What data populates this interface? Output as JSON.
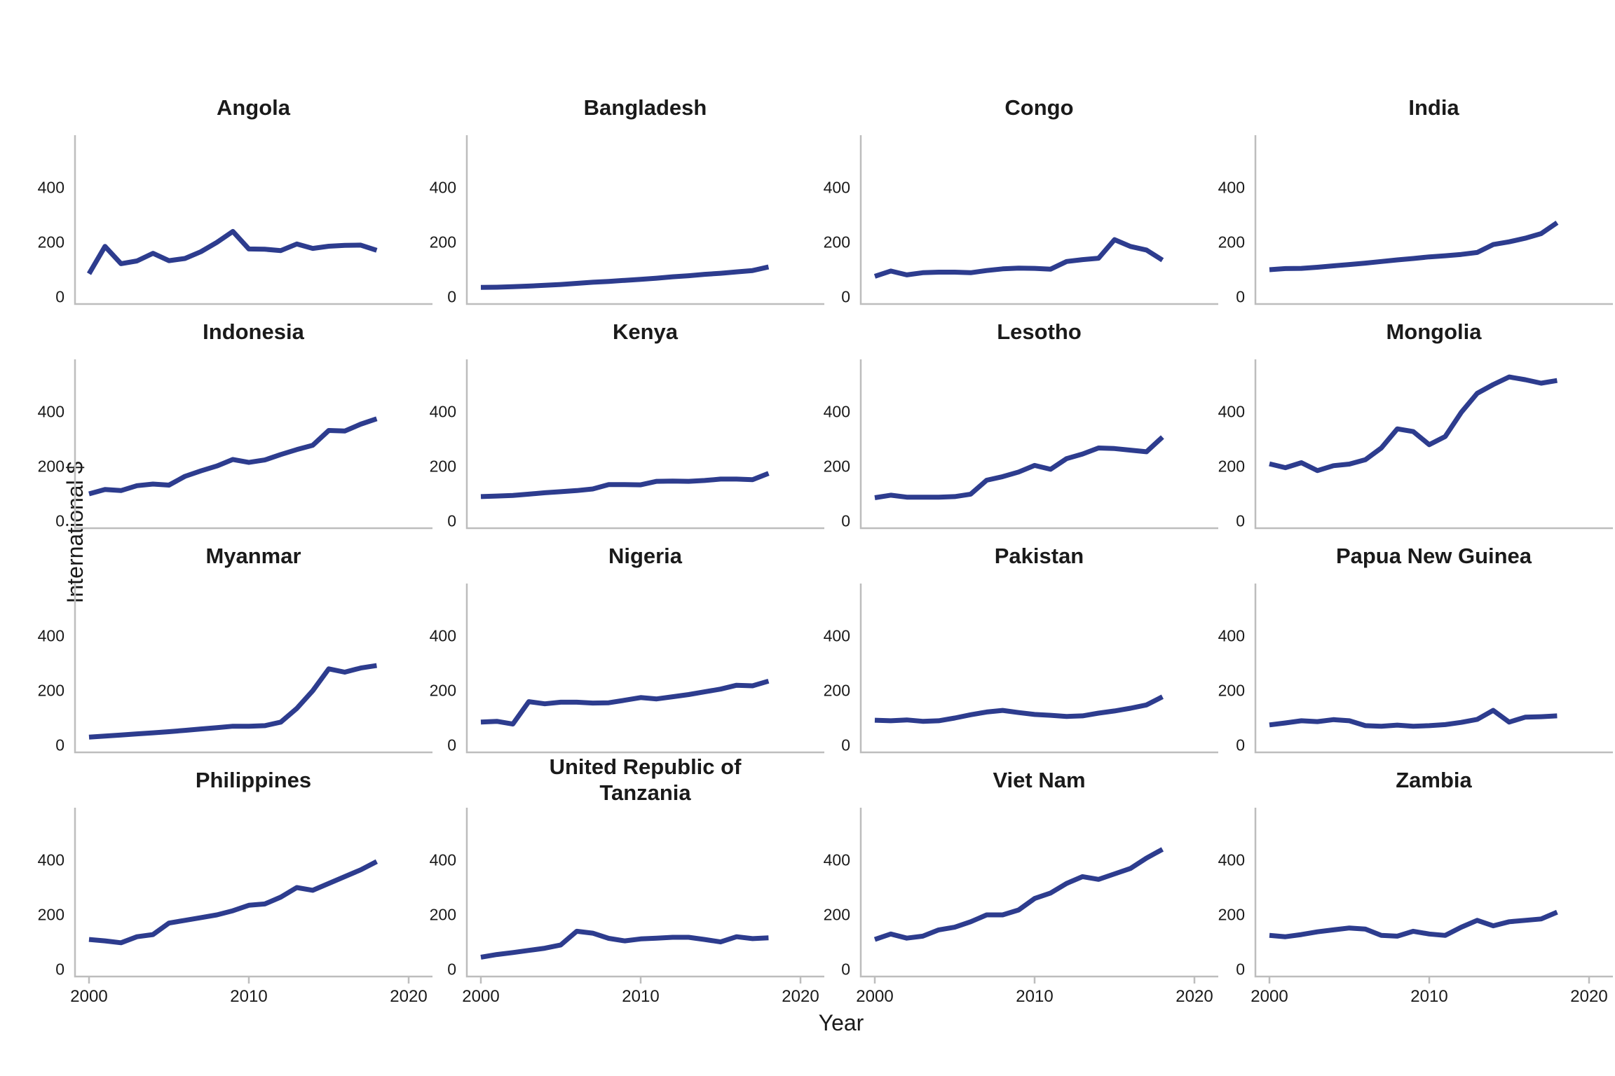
{
  "figure": {
    "ylabel": "International $",
    "xlabel": "Year",
    "line_color": "#2d3c8e",
    "axis_color": "#bdbdbd",
    "text_color": "#1a1a1a",
    "background": "#ffffff"
  },
  "chart_data": {
    "type": "line",
    "x": [
      2000,
      2001,
      2002,
      2003,
      2004,
      2005,
      2006,
      2007,
      2008,
      2009,
      2010,
      2011,
      2012,
      2013,
      2014,
      2015,
      2016,
      2017,
      2018
    ],
    "xlabel": "Year",
    "ylabel": "International $",
    "xticks": [
      2000,
      2010,
      2020
    ],
    "yticks": [
      0,
      200,
      400
    ],
    "xlim": [
      1999.1,
      2021.9
    ],
    "ylim": [
      0,
      592
    ],
    "grid": false,
    "legend": "none",
    "panels": [
      {
        "title": "Angola",
        "values": [
          85,
          185,
          122,
          132,
          160,
          133,
          141,
          166,
          200,
          240,
          176,
          175,
          170,
          194,
          178,
          186,
          189,
          190,
          171
        ]
      },
      {
        "title": "Bangladesh",
        "values": [
          35,
          36,
          38,
          40,
          43,
          46,
          50,
          54,
          57,
          61,
          65,
          69,
          74,
          78,
          83,
          87,
          92,
          97,
          110
        ]
      },
      {
        "title": "Congo",
        "values": [
          76,
          95,
          81,
          89,
          91,
          91,
          89,
          97,
          103,
          106,
          105,
          102,
          130,
          137,
          142,
          210,
          185,
          172,
          135
        ]
      },
      {
        "title": "India",
        "values": [
          100,
          104,
          105,
          109,
          114,
          119,
          124,
          130,
          136,
          141,
          147,
          151,
          156,
          163,
          192,
          202,
          215,
          232,
          272
        ]
      },
      {
        "title": "Indonesia",
        "values": [
          100,
          116,
          112,
          130,
          136,
          132,
          164,
          184,
          202,
          226,
          215,
          224,
          244,
          262,
          278,
          332,
          330,
          355,
          375
        ]
      },
      {
        "title": "Kenya",
        "values": [
          90,
          92,
          94,
          99,
          104,
          108,
          112,
          118,
          134,
          134,
          133,
          146,
          147,
          146,
          149,
          154,
          154,
          152,
          175
        ]
      },
      {
        "title": "Lesotho",
        "values": [
          86,
          95,
          88,
          88,
          88,
          90,
          99,
          150,
          163,
          180,
          204,
          190,
          229,
          246,
          268,
          266,
          260,
          254,
          308
        ]
      },
      {
        "title": "Mongolia",
        "values": [
          210,
          196,
          214,
          185,
          203,
          209,
          225,
          268,
          338,
          328,
          280,
          310,
          398,
          468,
          500,
          528,
          518,
          505,
          515
        ]
      },
      {
        "title": "Myanmar",
        "values": [
          30,
          34,
          38,
          42,
          46,
          50,
          55,
          60,
          65,
          70,
          70,
          72,
          85,
          135,
          200,
          280,
          268,
          283,
          292
        ]
      },
      {
        "title": "Nigeria",
        "values": [
          85,
          88,
          78,
          160,
          152,
          158,
          158,
          155,
          156,
          165,
          175,
          170,
          178,
          186,
          196,
          206,
          220,
          218,
          235
        ]
      },
      {
        "title": "Pakistan",
        "values": [
          92,
          90,
          93,
          88,
          90,
          100,
          112,
          122,
          128,
          120,
          113,
          110,
          106,
          108,
          118,
          126,
          136,
          148,
          178
        ]
      },
      {
        "title": "Papua New Guinea",
        "values": [
          75,
          82,
          90,
          87,
          94,
          90,
          72,
          70,
          74,
          70,
          72,
          76,
          84,
          95,
          128,
          85,
          103,
          105,
          108
        ]
      },
      {
        "title": "Philippines",
        "values": [
          110,
          105,
          98,
          120,
          128,
          170,
          180,
          190,
          200,
          215,
          235,
          240,
          265,
          300,
          290,
          315,
          340,
          365,
          395
        ]
      },
      {
        "title": "United Republic of\nTanzania",
        "values": [
          45,
          55,
          62,
          70,
          78,
          90,
          140,
          133,
          114,
          105,
          112,
          115,
          118,
          118,
          110,
          101,
          120,
          113,
          116
        ]
      },
      {
        "title": "Viet Nam",
        "values": [
          110,
          130,
          115,
          122,
          145,
          155,
          175,
          200,
          200,
          218,
          260,
          280,
          315,
          340,
          330,
          350,
          370,
          408,
          440
        ]
      },
      {
        "title": "Zambia",
        "values": [
          125,
          120,
          128,
          138,
          145,
          152,
          148,
          125,
          122,
          140,
          130,
          125,
          155,
          180,
          160,
          175,
          180,
          185,
          210
        ]
      }
    ]
  }
}
